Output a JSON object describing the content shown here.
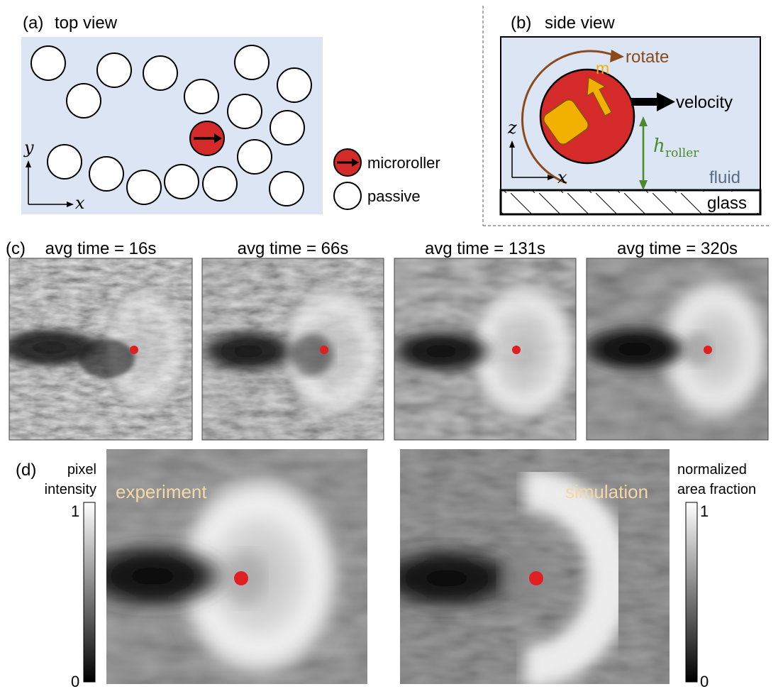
{
  "panel_a": {
    "label": "(a)",
    "title": "top view",
    "axis_x": "x",
    "axis_y": "y",
    "legend": [
      {
        "key": "microroller",
        "text": "microroller"
      },
      {
        "key": "passive",
        "text": "passive"
      }
    ],
    "colors": {
      "background": "#dbe5f3",
      "microroller": "#d42a2a",
      "passive": "#ffffff"
    }
  },
  "panel_b": {
    "label": "(b)",
    "title": "side view",
    "rotate": "rotate",
    "moment": "m",
    "velocity": "velocity",
    "height_main": "h",
    "height_sub": "roller",
    "fluid": "fluid",
    "glass": "glass",
    "axis_x": "x",
    "axis_z": "z",
    "colors": {
      "roller": "#d42a2a",
      "magnet": "#f2b100",
      "rotate": "#8a4a1c",
      "height": "#4a8a2e",
      "fluid_text": "#5c6b86"
    }
  },
  "panel_c": {
    "label": "(c)",
    "frames": [
      {
        "title": "avg time = 16s"
      },
      {
        "title": "avg time = 66s"
      },
      {
        "title": "avg time = 131s"
      },
      {
        "title": "avg time = 320s"
      }
    ]
  },
  "panel_d": {
    "label": "(d)",
    "experiment": "experiment",
    "simulation": "simulation",
    "left_bar": {
      "title_line1": "pixel",
      "title_line2": "intensity",
      "max": "1",
      "min": "0"
    },
    "right_bar": {
      "title_line1": "normalized",
      "title_line2": "area fraction",
      "max": "1",
      "min": "0"
    },
    "overlay_text_color": "#f5d7a6",
    "marker_color": "#e02020"
  }
}
